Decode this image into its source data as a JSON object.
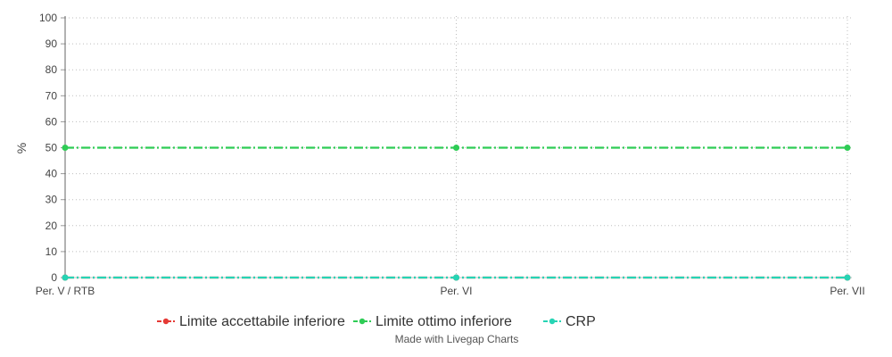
{
  "chart_data": {
    "type": "line",
    "title": "",
    "xlabel": "",
    "ylabel": "%",
    "categories": [
      "Per. V / RTB",
      "Per. VI",
      "Per. VII"
    ],
    "ylim": [
      0,
      100
    ],
    "yticks": [
      0,
      10,
      20,
      30,
      40,
      50,
      60,
      70,
      80,
      90,
      100
    ],
    "grid": true,
    "legend_position": "bottom",
    "series": [
      {
        "name": "Limite accettabile inferiore",
        "values": [
          0,
          0,
          0
        ],
        "color": "#e53935",
        "dash": "dash-dot"
      },
      {
        "name": "Limite ottimo inferiore",
        "values": [
          50,
          50,
          50
        ],
        "color": "#2ecc55",
        "dash": "dash-dot"
      },
      {
        "name": "CRP",
        "values": [
          0,
          0,
          0
        ],
        "color": "#26d4b4",
        "dash": "dash-dot"
      }
    ]
  },
  "credit": "Made with Livegap Charts"
}
